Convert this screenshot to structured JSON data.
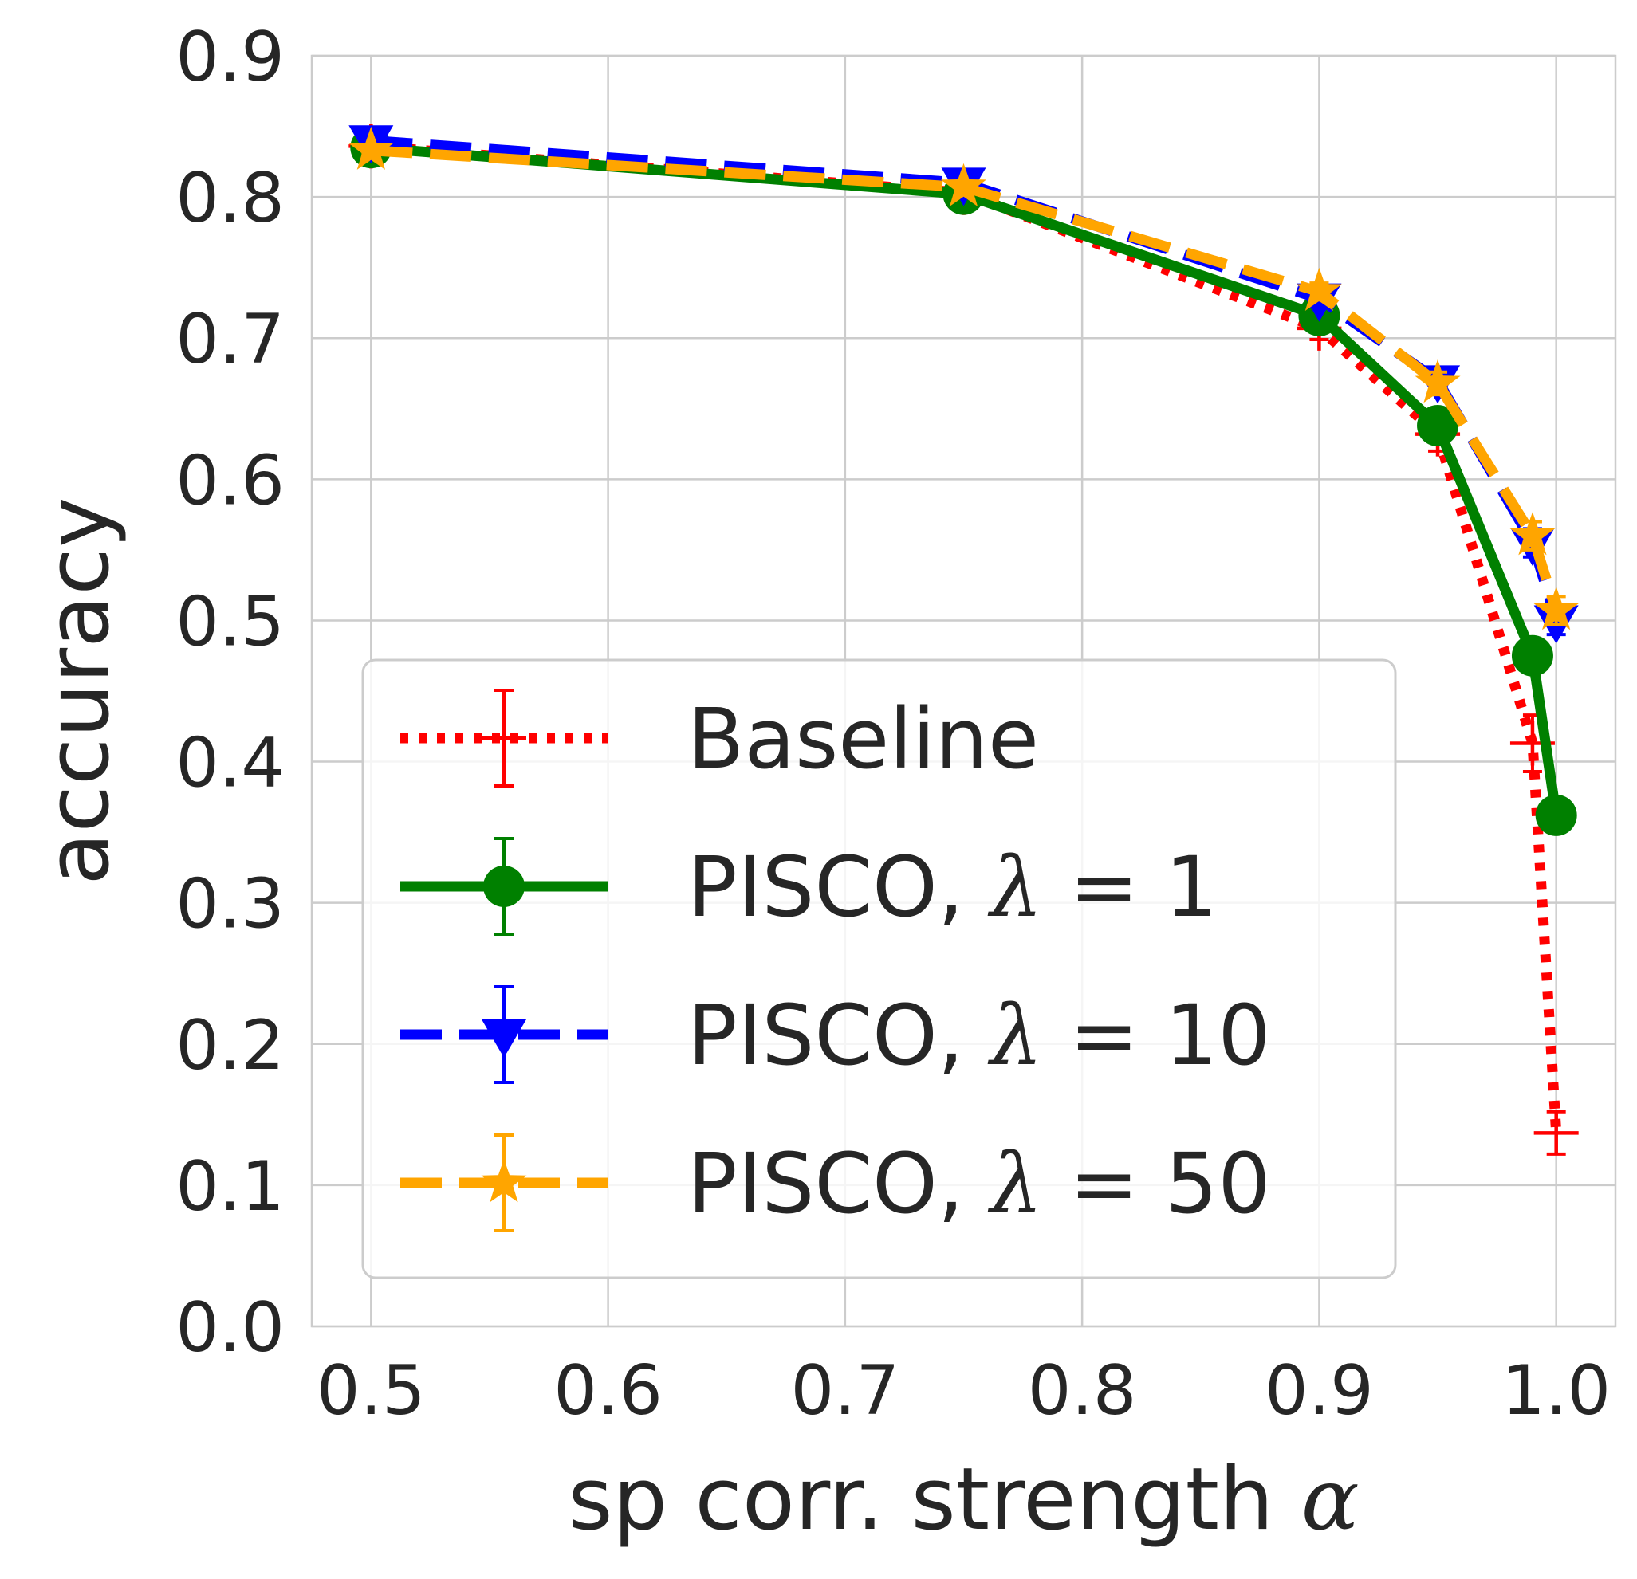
{
  "chart_data": {
    "type": "line",
    "xlabel_text": "sp corr. strength ",
    "xlabel_symbol": "α",
    "ylabel": "accuracy",
    "xlim": [
      0.475,
      1.025
    ],
    "ylim": [
      0.0,
      0.9
    ],
    "xticks": [
      0.5,
      0.6,
      0.7,
      0.8,
      0.9,
      1.0
    ],
    "xtick_labels": [
      "0.5",
      "0.6",
      "0.7",
      "0.8",
      "0.9",
      "1.0"
    ],
    "yticks": [
      0.0,
      0.1,
      0.2,
      0.3,
      0.4,
      0.5,
      0.6,
      0.7,
      0.8,
      0.9
    ],
    "ytick_labels": [
      "0.0",
      "0.1",
      "0.2",
      "0.3",
      "0.4",
      "0.5",
      "0.6",
      "0.7",
      "0.8",
      "0.9"
    ],
    "grid": true,
    "legend_position": "lower-left",
    "x": [
      0.5,
      0.75,
      0.9,
      0.95,
      0.99,
      1.0
    ],
    "series": [
      {
        "name": "Baseline",
        "name_symbol": "",
        "name_value": "",
        "values": [
          0.836,
          0.803,
          0.707,
          0.632,
          0.413,
          0.137
        ],
        "errors": [
          0.004,
          0.005,
          0.008,
          0.012,
          0.02,
          0.015
        ],
        "color": "#ff0000",
        "linestyle": "dotted",
        "marker": "plus"
      },
      {
        "name": "PISCO, ",
        "name_symbol": "λ",
        "name_value": " = 1",
        "values": [
          0.835,
          0.802,
          0.716,
          0.638,
          0.475,
          0.362
        ],
        "errors": [
          0.003,
          0.004,
          0.006,
          0.008,
          0.01,
          0.008
        ],
        "color": "#008000",
        "linestyle": "solid",
        "marker": "circle"
      },
      {
        "name": "PISCO, ",
        "name_symbol": "λ",
        "name_value": " = 10",
        "values": [
          0.84,
          0.81,
          0.728,
          0.67,
          0.555,
          0.5
        ],
        "errors": [
          0.003,
          0.004,
          0.006,
          0.008,
          0.01,
          0.01
        ],
        "color": "#0000ff",
        "linestyle": "dashed",
        "marker": "triangle-down"
      },
      {
        "name": "PISCO, ",
        "name_symbol": "λ",
        "name_value": " = 50",
        "values": [
          0.833,
          0.807,
          0.733,
          0.668,
          0.56,
          0.507
        ],
        "errors": [
          0.003,
          0.004,
          0.006,
          0.008,
          0.01,
          0.01
        ],
        "color": "#ffa500",
        "linestyle": "dashed",
        "marker": "star"
      }
    ]
  }
}
